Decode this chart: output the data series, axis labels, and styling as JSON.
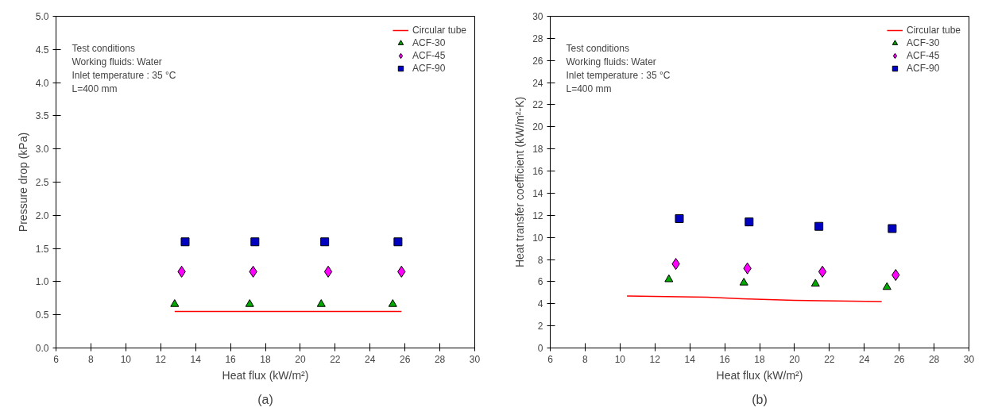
{
  "chart_data": [
    {
      "type": "scatter",
      "xlabel": "Heat flux (kW/m²)",
      "ylabel": "Pressure drop (kPa)",
      "xlim": [
        6,
        30
      ],
      "ylim": [
        0,
        5
      ],
      "xticks": [
        6,
        8,
        10,
        12,
        14,
        16,
        18,
        20,
        22,
        24,
        26,
        28,
        30
      ],
      "yticks": [
        {
          "value": 0,
          "label": "0.0"
        },
        {
          "value": 0.5,
          "label": "0.5"
        },
        {
          "value": 1,
          "label": "1.0"
        },
        {
          "value": 1.5,
          "label": "1.5"
        },
        {
          "value": 2,
          "label": "2.0"
        },
        {
          "value": 2.5,
          "label": "2.5"
        },
        {
          "value": 3,
          "label": "3.0"
        },
        {
          "value": 3.5,
          "label": "3.5"
        },
        {
          "value": 4,
          "label": "4.0"
        },
        {
          "value": 4.5,
          "label": "4.5"
        },
        {
          "value": 5,
          "label": "5.0"
        }
      ],
      "grid": false,
      "legend": "top right",
      "annotations": [
        "Test conditions",
        "Working fluids: Water",
        "Inlet temperature : 35 °C",
        "L=400 mm",
        "(a)"
      ],
      "series": [
        {
          "name": "Circular tube",
          "type": "line",
          "color": "#ff0000",
          "marker": "none",
          "x": [
            12.8,
            25.8
          ],
          "values": [
            0.55,
            0.55
          ]
        },
        {
          "name": "ACF-30",
          "color": "#00aa00",
          "marker": "triangle",
          "x": [
            12.8,
            17.1,
            21.2,
            25.3
          ],
          "values": [
            0.66,
            0.66,
            0.66,
            0.66
          ]
        },
        {
          "name": "ACF-45",
          "color": "#ff00ff",
          "marker": "diamond",
          "x": [
            13.2,
            17.3,
            21.6,
            25.8
          ],
          "values": [
            1.15,
            1.15,
            1.15,
            1.15
          ]
        },
        {
          "name": "ACF-90",
          "color": "#0000c0",
          "marker": "square",
          "x": [
            13.4,
            17.4,
            21.4,
            25.6
          ],
          "values": [
            1.6,
            1.6,
            1.6,
            1.6
          ]
        }
      ]
    },
    {
      "type": "scatter",
      "xlabel": "Heat flux (kW/m²)",
      "ylabel": "Heat transfer coefficient (kW/m²-K)",
      "xlim": [
        6,
        30
      ],
      "ylim": [
        0,
        30
      ],
      "xticks": [
        6,
        8,
        10,
        12,
        14,
        16,
        18,
        20,
        22,
        24,
        26,
        28,
        30
      ],
      "yticks": [
        0,
        2,
        4,
        6,
        8,
        10,
        12,
        14,
        16,
        18,
        20,
        22,
        24,
        26,
        28,
        30
      ],
      "grid": false,
      "legend": "top right",
      "annotations": [
        "Test conditions",
        "Working fluids: Water",
        "Inlet temperature : 35 °C",
        "L=400 mm",
        "(b)"
      ],
      "series": [
        {
          "name": "Circular tube",
          "type": "line",
          "color": "#ff0000",
          "marker": "none",
          "x": [
            10.4,
            15,
            17,
            20,
            25
          ],
          "values": [
            4.7,
            4.6,
            4.45,
            4.3,
            4.2
          ]
        },
        {
          "name": "ACF-30",
          "color": "#00aa00",
          "marker": "triangle",
          "x": [
            12.8,
            17.1,
            21.2,
            25.3
          ],
          "values": [
            6.2,
            5.9,
            5.8,
            5.5
          ]
        },
        {
          "name": "ACF-45",
          "color": "#ff00ff",
          "marker": "diamond",
          "x": [
            13.2,
            17.3,
            21.6,
            25.8
          ],
          "values": [
            7.6,
            7.2,
            6.9,
            6.6
          ]
        },
        {
          "name": "ACF-90",
          "color": "#0000c0",
          "marker": "square",
          "x": [
            13.4,
            17.4,
            21.4,
            25.6
          ],
          "values": [
            11.7,
            11.4,
            11.0,
            10.8
          ]
        }
      ]
    }
  ]
}
